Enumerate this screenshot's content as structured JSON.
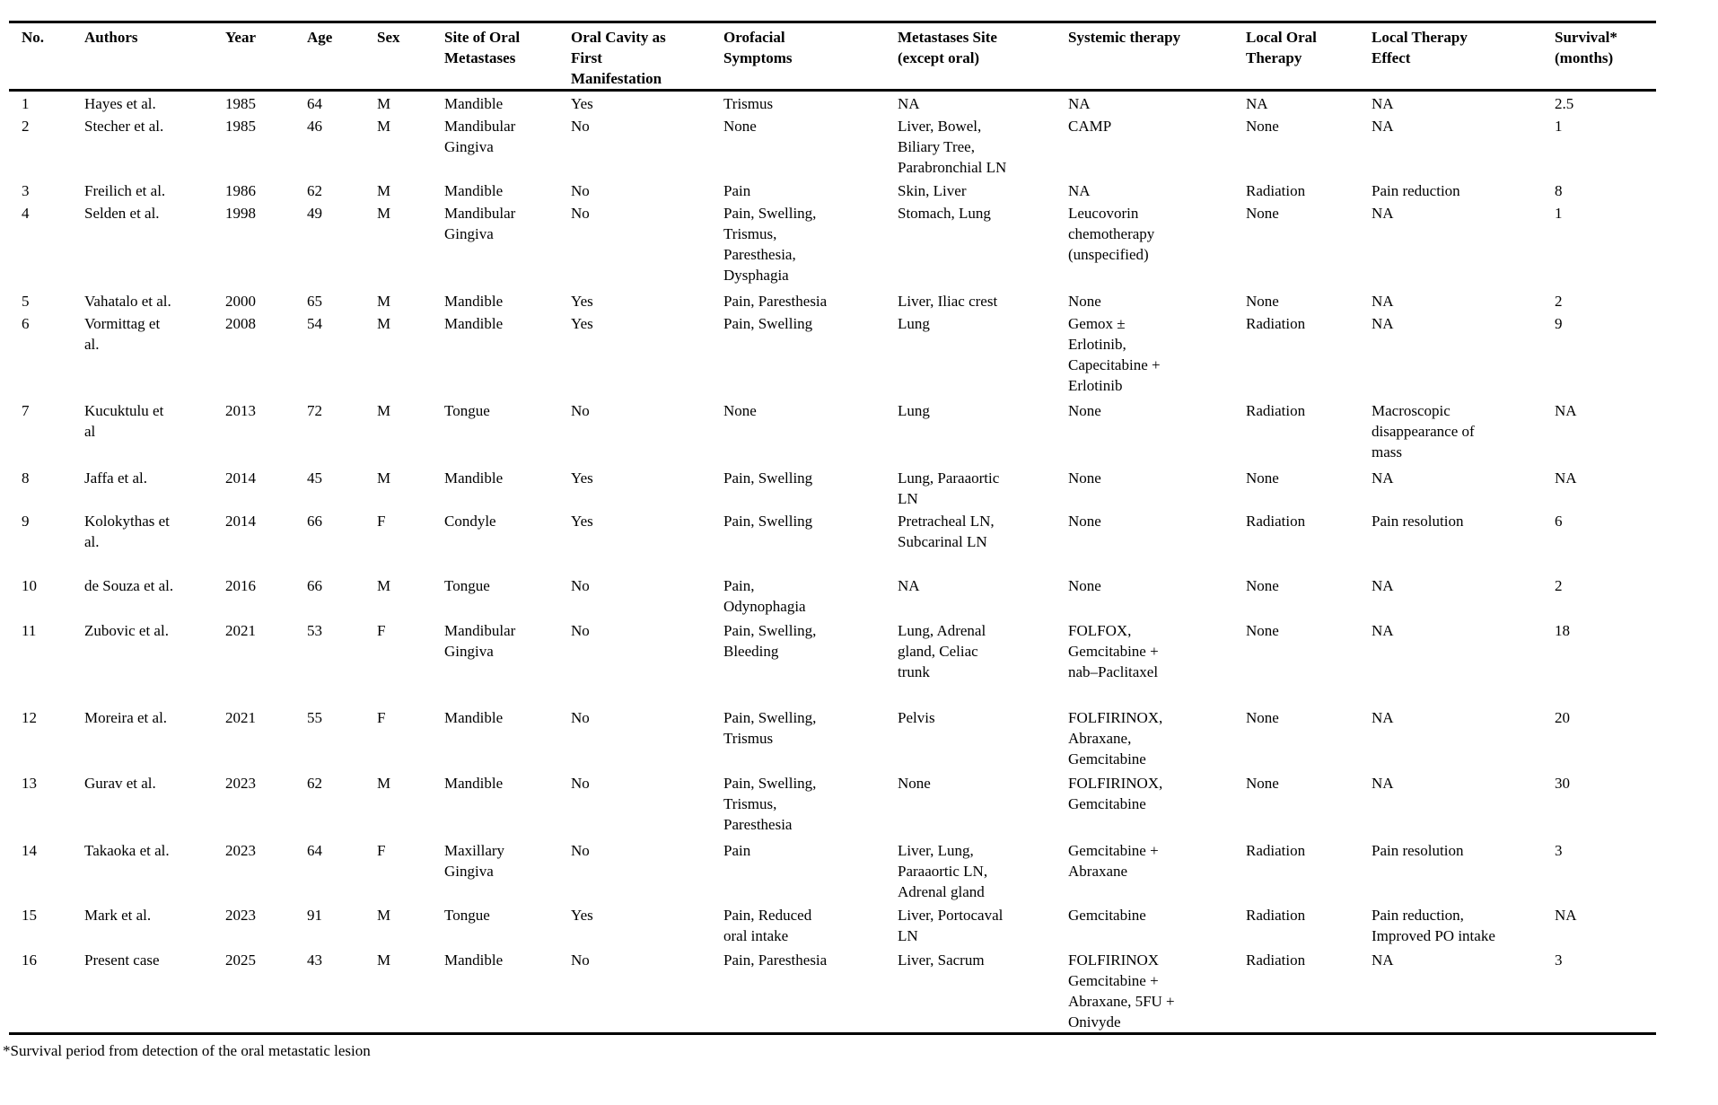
{
  "table": {
    "columns": [
      "No.",
      "Authors",
      "Year",
      "Age",
      "Sex",
      "Site of Oral Metastases",
      "Oral Cavity as First Manifestation",
      "Orofacial Symptoms",
      "Metastases Site (except oral)",
      "Systemic therapy",
      "Local Oral Therapy",
      "Local Therapy Effect",
      "Survival* (months)"
    ],
    "rows": [
      [
        "1",
        "Hayes et al.",
        "1985",
        "64",
        "M",
        "Mandible",
        "Yes",
        "Trismus",
        "NA",
        "NA",
        "NA",
        "NA",
        "2.5"
      ],
      [
        "2",
        "Stecher et al.",
        "1985",
        "46",
        "M",
        "Mandibular Gingiva",
        "No",
        "None",
        "Liver, Bowel, Biliary Tree, Parabronchial LN",
        "CAMP",
        "None",
        "NA",
        "1"
      ],
      [
        "3",
        "Freilich et al.",
        "1986",
        "62",
        "M",
        "Mandible",
        "No",
        "Pain",
        "Skin, Liver",
        "NA",
        "Radiation",
        "Pain reduction",
        "8"
      ],
      [
        "4",
        "Selden et al.",
        "1998",
        "49",
        "M",
        "Mandibular Gingiva",
        "No",
        "Pain, Swelling, Trismus, Paresthesia, Dysphagia",
        "Stomach, Lung",
        "Leucovorin chemotherapy (unspecified)",
        "None",
        "NA",
        "1"
      ],
      [
        "5",
        "Vahatalo et al.",
        "2000",
        "65",
        "M",
        "Mandible",
        "Yes",
        "Pain, Paresthesia",
        "Liver, Iliac crest",
        "None",
        "None",
        "NA",
        "2"
      ],
      [
        "6",
        "Vormittag et al.",
        "2008",
        "54",
        "M",
        "Mandible",
        "Yes",
        "Pain, Swelling",
        "Lung",
        "Gemox ± Erlotinib, Capecitabine + Erlotinib",
        "Radiation",
        "NA",
        "9"
      ],
      [
        "7",
        "Kucuktulu et al",
        "2013",
        "72",
        "M",
        "Tongue",
        "No",
        "None",
        "Lung",
        "None",
        "Radiation",
        "Macroscopic disappearance of mass",
        "NA"
      ],
      [
        "8",
        "Jaffa et al.",
        "2014",
        "45",
        "M",
        "Mandible",
        "Yes",
        "Pain, Swelling",
        "Lung, Paraaortic LN",
        "None",
        "None",
        "NA",
        "NA"
      ],
      [
        "9",
        "Kolokythas et al.",
        "2014",
        "66",
        "F",
        "Condyle",
        "Yes",
        "Pain, Swelling",
        "Pretracheal LN, Subcarinal LN",
        "None",
        "Radiation",
        "Pain resolution",
        "6"
      ],
      [
        "10",
        "de Souza et al.",
        "2016",
        "66",
        "M",
        "Tongue",
        "No",
        "Pain, Odynophagia",
        "NA",
        "None",
        "None",
        "NA",
        "2"
      ],
      [
        "11",
        "Zubovic et al.",
        "2021",
        "53",
        "F",
        "Mandibular Gingiva",
        "No",
        "Pain, Swelling, Bleeding",
        "Lung, Adrenal gland, Celiac trunk",
        "FOLFOX, Gemcitabine + nab–Paclitaxel",
        "None",
        "NA",
        "18"
      ],
      [
        "12",
        "Moreira et al.",
        "2021",
        "55",
        "F",
        "Mandible",
        "No",
        "Pain, Swelling, Trismus",
        "Pelvis",
        "FOLFIRINOX, Abraxane, Gemcitabine",
        "None",
        "NA",
        "20"
      ],
      [
        "13",
        "Gurav et al.",
        "2023",
        "62",
        "M",
        "Mandible",
        "No",
        "Pain, Swelling, Trismus, Paresthesia",
        "None",
        "FOLFIRINOX, Gemcitabine",
        "None",
        "NA",
        "30"
      ],
      [
        "14",
        "Takaoka et al.",
        "2023",
        "64",
        "F",
        "Maxillary Gingiva",
        "No",
        "Pain",
        "Liver, Lung, Paraaortic LN, Adrenal gland",
        "Gemcitabine + Abraxane",
        "Radiation",
        "Pain resolution",
        "3"
      ],
      [
        "15",
        "Mark et al.",
        "2023",
        "91",
        "M",
        "Tongue",
        "Yes",
        "Pain, Reduced oral intake",
        "Liver, Portocaval LN",
        "Gemcitabine",
        "Radiation",
        "Pain reduction, Improved PO intake",
        "NA"
      ],
      [
        "16",
        "Present case",
        "2025",
        "43",
        "M",
        "Mandible",
        "No",
        "Pain, Paresthesia",
        "Liver, Sacrum",
        "FOLFIRINOX Gemcitabine + Abraxane, 5FU + Onivyde",
        "Radiation",
        "NA",
        "3"
      ]
    ],
    "footnote": "*Survival period from detection of the oral metastatic lesion"
  }
}
